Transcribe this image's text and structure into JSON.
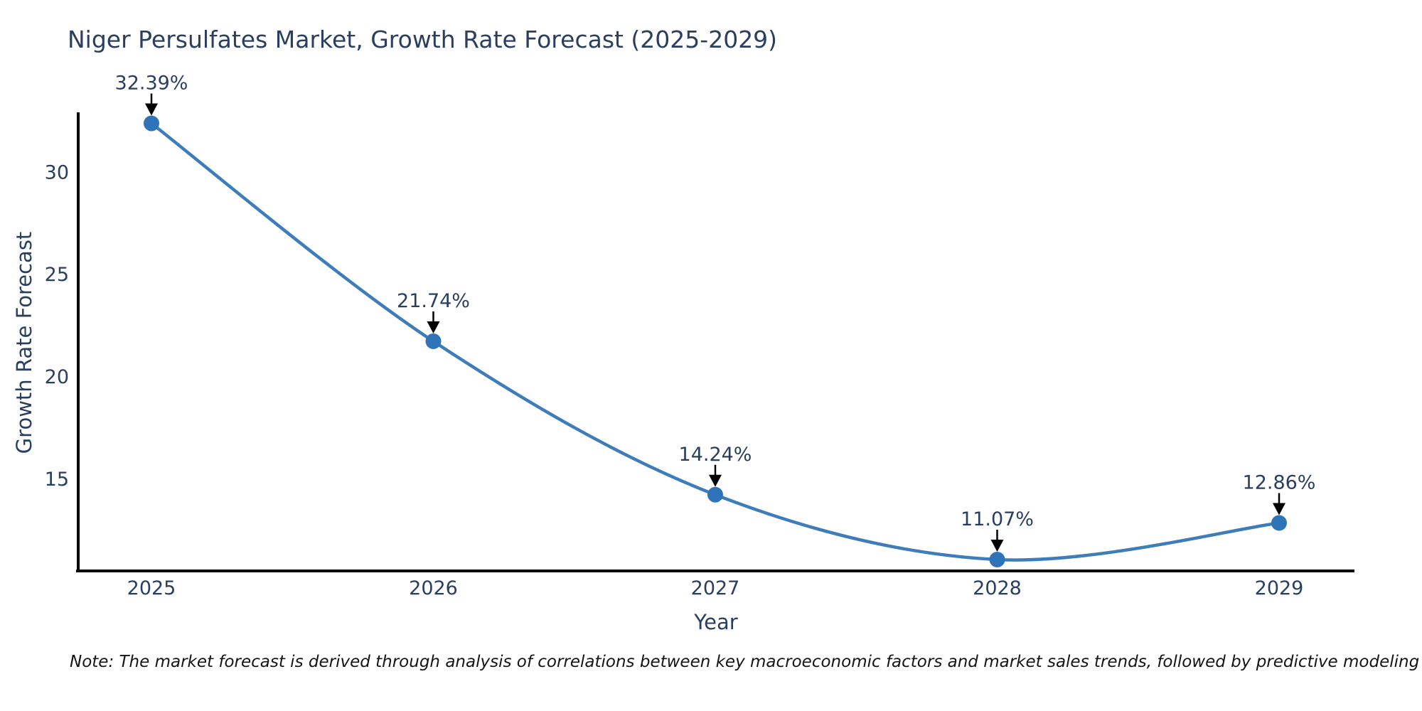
{
  "chart": {
    "title": "Niger Persulfates Market, Growth Rate Forecast (2025-2029)",
    "xlabel": "Year",
    "ylabel": "Growth Rate Forecast",
    "note": "Note: The market forecast is derived through analysis of correlations between key macroeconomic factors and market sales trends, followed by predictive modeling to project future sales"
  },
  "chart_data": {
    "type": "line",
    "title": "Niger Persulfates Market, Growth Rate Forecast (2025-2029)",
    "xlabel": "Year",
    "ylabel": "Growth Rate Forecast",
    "categories": [
      "2025",
      "2026",
      "2027",
      "2028",
      "2029"
    ],
    "series": [
      {
        "name": "Growth Rate Forecast",
        "values": [
          32.39,
          21.74,
          14.24,
          11.07,
          12.86
        ]
      }
    ],
    "point_labels": [
      "32.39%",
      "21.74%",
      "14.24%",
      "11.07%",
      "12.86%"
    ],
    "yticks": [
      15,
      20,
      25,
      30
    ],
    "ylim": [
      10.5,
      34.4
    ],
    "grid": false,
    "legend": false,
    "line_shape": "spline",
    "colors": {
      "line": "#3e7dba",
      "marker": "#2f74b8",
      "axis": "#000000",
      "tick_text": "#2a3f5f",
      "annotation_text": "#2a3f5f",
      "annotation_arrow": "#000000",
      "background": "#ffffff"
    }
  }
}
